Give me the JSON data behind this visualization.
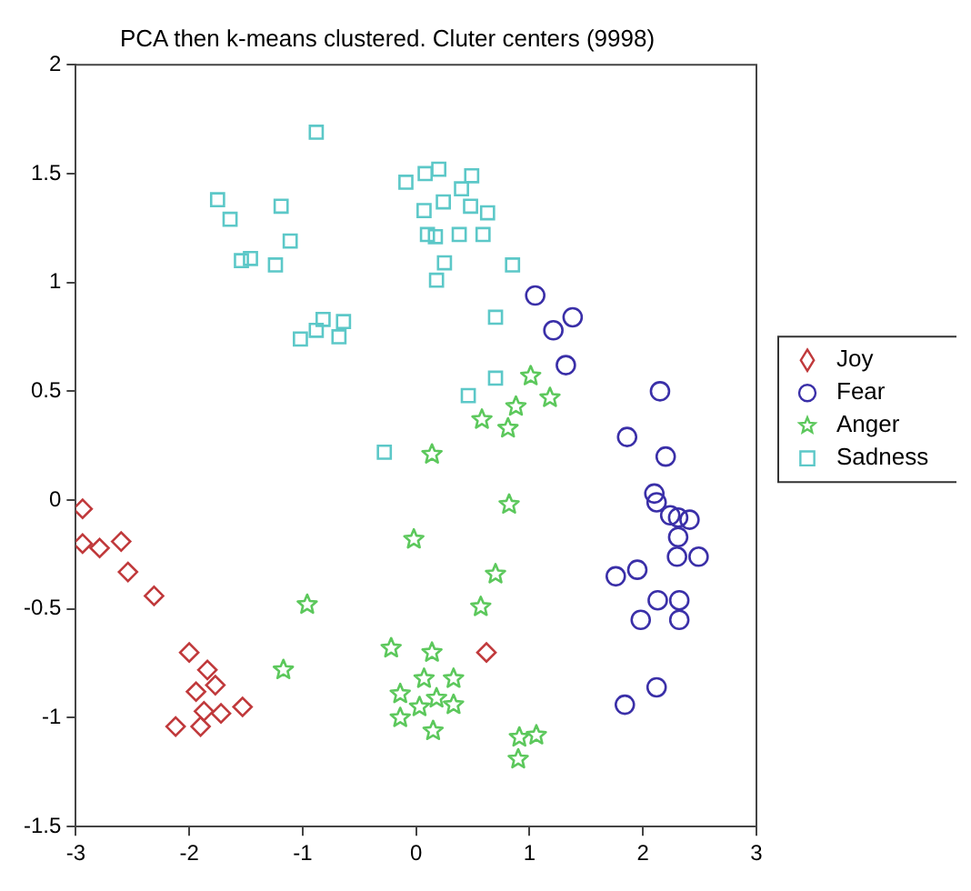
{
  "chart_data": {
    "type": "scatter",
    "title": "PCA then k-means clustered. Cluter centers (9998)",
    "xlim": [
      -3,
      3
    ],
    "xticks": [
      -3,
      -2,
      -1,
      0,
      1,
      2,
      3
    ],
    "ylim": [
      -1.5,
      2
    ],
    "yticks": [
      -1.5,
      -1,
      -0.5,
      0,
      0.5,
      1,
      1.5,
      2
    ],
    "grid": false,
    "legend": "right",
    "series": [
      {
        "name": "Joy",
        "color": "#c0393b",
        "marker": "diamond",
        "x": [
          -2.94,
          -2.94,
          -2.79,
          -2.6,
          -2.54,
          -2.31,
          -2.0,
          -1.94,
          -1.84,
          -1.77,
          -1.87,
          -1.72,
          -1.53,
          -2.12,
          -1.9,
          0.62
        ],
        "values": [
          -0.04,
          -0.2,
          -0.22,
          -0.19,
          -0.33,
          -0.44,
          -0.7,
          -0.88,
          -0.78,
          -0.85,
          -0.97,
          -0.98,
          -0.95,
          -1.04,
          -1.04,
          -0.7
        ]
      },
      {
        "name": "Fear",
        "color": "#3a2fa8",
        "marker": "circle",
        "x": [
          1.05,
          1.21,
          1.38,
          1.32,
          2.15,
          1.86,
          2.2,
          2.1,
          2.12,
          2.24,
          2.31,
          2.41,
          2.31,
          2.3,
          2.49,
          1.76,
          1.95,
          2.13,
          2.32,
          1.98,
          2.32,
          2.12,
          1.84
        ],
        "values": [
          0.94,
          0.78,
          0.84,
          0.62,
          0.5,
          0.29,
          0.2,
          0.03,
          -0.01,
          -0.07,
          -0.08,
          -0.09,
          -0.17,
          -0.26,
          -0.26,
          -0.35,
          -0.32,
          -0.46,
          -0.46,
          -0.55,
          -0.55,
          -0.86,
          -0.94
        ]
      },
      {
        "name": "Anger",
        "color": "#5cc85c",
        "marker": "star",
        "x": [
          1.01,
          1.18,
          0.58,
          0.88,
          0.81,
          0.14,
          0.82,
          -0.02,
          0.7,
          0.57,
          -0.96,
          -1.17,
          -0.22,
          0.14,
          0.07,
          0.33,
          -0.14,
          0.03,
          0.18,
          0.33,
          -0.14,
          0.15,
          0.91,
          1.06,
          0.9
        ],
        "values": [
          0.57,
          0.47,
          0.37,
          0.43,
          0.33,
          0.21,
          -0.02,
          -0.18,
          -0.34,
          -0.49,
          -0.48,
          -0.78,
          -0.68,
          -0.7,
          -0.82,
          -0.82,
          -0.89,
          -0.95,
          -0.91,
          -0.94,
          -1.0,
          -1.06,
          -1.09,
          -1.08,
          -1.19
        ]
      },
      {
        "name": "Sadness",
        "color": "#5cc8c8",
        "marker": "square",
        "x": [
          -0.88,
          -1.75,
          -1.64,
          -1.19,
          -1.11,
          -1.54,
          -1.46,
          -1.24,
          -1.02,
          -0.88,
          -0.82,
          -0.64,
          -0.68,
          -0.09,
          0.08,
          0.2,
          0.49,
          0.4,
          0.07,
          0.24,
          0.48,
          0.63,
          0.1,
          0.17,
          0.38,
          0.59,
          0.25,
          0.18,
          0.85,
          0.7,
          0.7,
          0.46,
          -0.28
        ],
        "values": [
          1.69,
          1.38,
          1.29,
          1.35,
          1.19,
          1.1,
          1.11,
          1.08,
          0.74,
          0.78,
          0.83,
          0.82,
          0.75,
          1.46,
          1.5,
          1.52,
          1.49,
          1.43,
          1.33,
          1.37,
          1.35,
          1.32,
          1.22,
          1.21,
          1.22,
          1.22,
          1.09,
          1.01,
          1.08,
          0.84,
          0.56,
          0.48,
          0.22
        ]
      }
    ]
  }
}
